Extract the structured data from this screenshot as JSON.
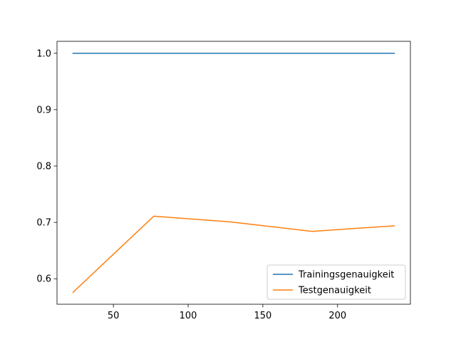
{
  "chart_data": {
    "type": "line",
    "title": "",
    "xlabel": "",
    "ylabel": "",
    "x": [
      23,
      77,
      128,
      183,
      238
    ],
    "series": [
      {
        "name": "Trainingsgenauigkeit",
        "color": "#1f77b4",
        "values": [
          1.0,
          1.0,
          1.0,
          1.0,
          1.0
        ]
      },
      {
        "name": "Testgenauigkeit",
        "color": "#ff7f0e",
        "values": [
          0.576,
          0.711,
          0.701,
          0.684,
          0.694
        ]
      }
    ],
    "xlim": [
      12.25,
      248.75
    ],
    "ylim": [
      0.5548,
      1.0212
    ],
    "xticks": [
      50,
      100,
      150,
      200
    ],
    "yticks": [
      0.6,
      0.7,
      0.8,
      0.9,
      1.0
    ],
    "xtick_labels": [
      "50",
      "100",
      "150",
      "200"
    ],
    "ytick_labels": [
      "0.6",
      "0.7",
      "0.8",
      "0.9",
      "1.0"
    ],
    "grid": false,
    "legend_position": "lower-right"
  }
}
